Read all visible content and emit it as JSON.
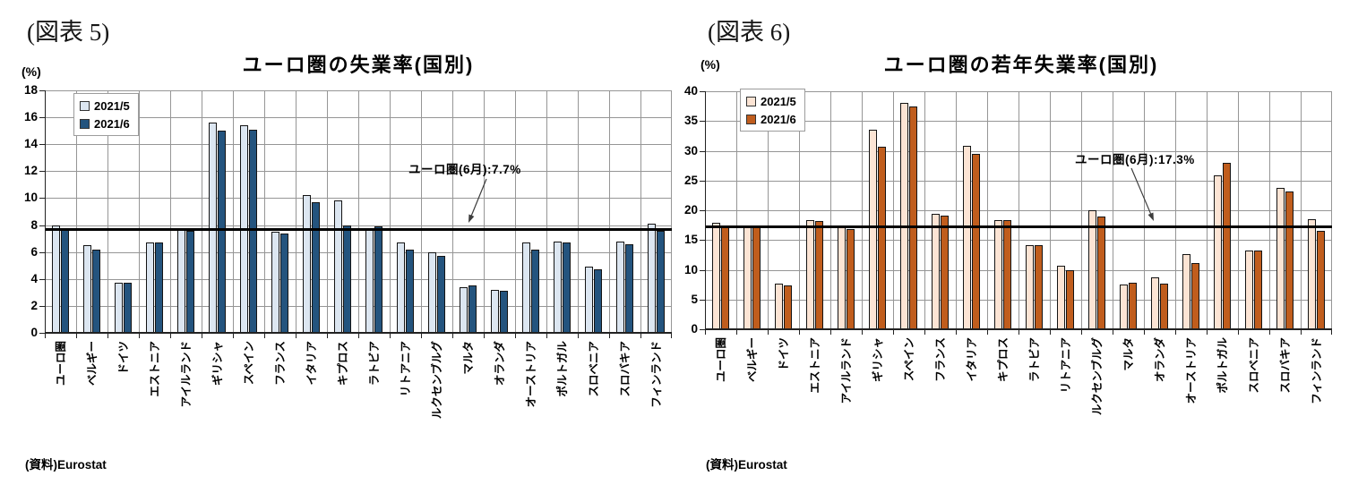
{
  "chart_data": [
    {
      "type": "bar",
      "figure_label": "(図表 5)",
      "title": "ユーロ圏の失業率(国別)",
      "y_axis_unit": "(%)",
      "source": "(資料)Eurostat",
      "categories": [
        "ユーロ圏",
        "ベルギー",
        "ドイツ",
        "エストニア",
        "アイルランド",
        "ギリシャ",
        "スペイン",
        "フランス",
        "イタリア",
        "キプロス",
        "ラトビア",
        "リトアニア",
        "ルクセンブルグ",
        "マルタ",
        "オランダ",
        "オーストリア",
        "ポルトガル",
        "スロベニア",
        "スロバキア",
        "フィンランド"
      ],
      "series": [
        {
          "name": "2021/5",
          "color": "#dce6f1",
          "values": [
            8.0,
            6.5,
            3.7,
            6.7,
            7.7,
            15.6,
            15.4,
            7.5,
            10.2,
            9.8,
            7.8,
            6.7,
            6.0,
            3.4,
            3.2,
            6.7,
            6.8,
            4.9,
            6.8,
            8.1
          ]
        },
        {
          "name": "2021/6",
          "color": "#24547e",
          "values": [
            7.7,
            6.2,
            3.7,
            6.7,
            7.6,
            15.0,
            15.1,
            7.4,
            9.7,
            8.0,
            7.9,
            6.2,
            5.7,
            3.5,
            3.1,
            6.2,
            6.7,
            4.7,
            6.6,
            7.6
          ]
        }
      ],
      "ylim": [
        0,
        18
      ],
      "ytick_step": 2,
      "grid": true,
      "legend_position": "top-left",
      "reference_line": {
        "value": 7.7,
        "annotation": "ユーロ圏(6月):7.7%"
      }
    },
    {
      "type": "bar",
      "figure_label": "(図表 6)",
      "title": "ユーロ圏の若年失業率(国別)",
      "y_axis_unit": "(%)",
      "source": "(資料)Eurostat",
      "categories": [
        "ユーロ圏",
        "ベルギー",
        "ドイツ",
        "エストニア",
        "アイルランド",
        "ギリシャ",
        "スペイン",
        "フランス",
        "イタリア",
        "キプロス",
        "ラトビア",
        "リトアニア",
        "ルクセンブルグ",
        "マルタ",
        "オランダ",
        "オーストリア",
        "ポルトガル",
        "スロベニア",
        "スロバキア",
        "フィンランド"
      ],
      "series": [
        {
          "name": "2021/5",
          "color": "#fce4d4",
          "values": [
            17.9,
            17.5,
            7.7,
            18.3,
            17.4,
            33.5,
            38.0,
            19.4,
            30.8,
            18.4,
            14.2,
            10.7,
            20.0,
            7.5,
            8.7,
            12.7,
            25.8,
            13.2,
            23.7,
            18.5
          ]
        },
        {
          "name": "2021/6",
          "color": "#c05d1d",
          "values": [
            17.3,
            17.5,
            7.4,
            18.2,
            16.9,
            30.7,
            37.4,
            19.1,
            29.4,
            18.4,
            14.2,
            10.0,
            18.9,
            7.8,
            7.6,
            11.1,
            28.0,
            13.2,
            23.2,
            16.6
          ]
        }
      ],
      "ylim": [
        0,
        40
      ],
      "ytick_step": 5,
      "grid": true,
      "legend_position": "top-left",
      "reference_line": {
        "value": 17.3,
        "annotation": "ユーロ圏(6月):17.3%"
      }
    }
  ]
}
